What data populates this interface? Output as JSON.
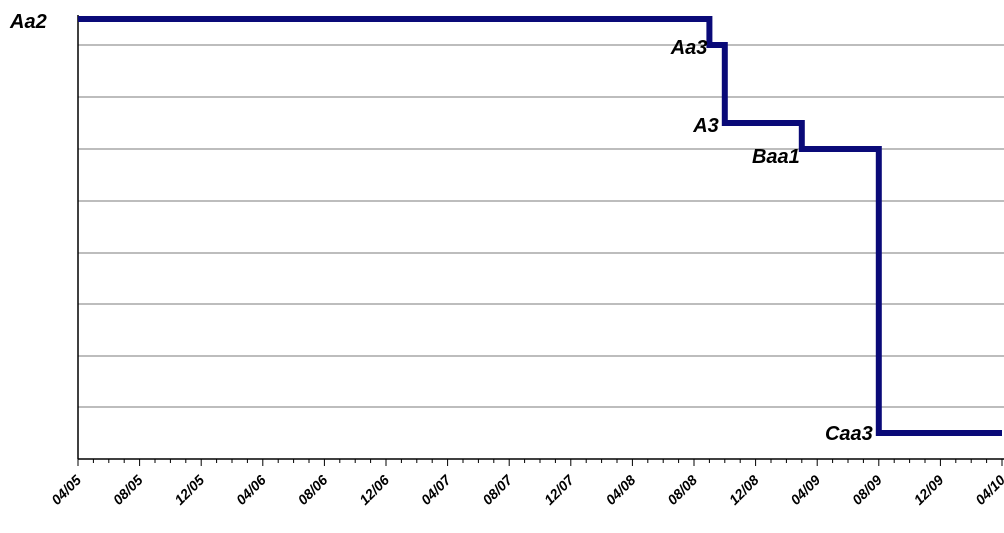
{
  "chart_data": {
    "type": "line",
    "step": true,
    "title": "",
    "xlabel": "",
    "ylabel": "",
    "x_range": [
      "2005-04",
      "2010-04"
    ],
    "x_ticks": [
      "04/05",
      "08/05",
      "12/05",
      "04/06",
      "08/06",
      "12/06",
      "04/07",
      "08/07",
      "12/07",
      "04/08",
      "08/08",
      "12/08",
      "04/09",
      "08/09",
      "12/09",
      "04/10"
    ],
    "y_scale_labels": [
      "Aa2",
      "Aa3",
      "A3",
      "Baa1",
      "Caa3"
    ],
    "grid": true,
    "series": [
      {
        "color": "#0a0a78",
        "points": [
          {
            "x": "2005-04",
            "y": "Aa2"
          },
          {
            "x": "2008-09",
            "y": "Aa3"
          },
          {
            "x": "2008-10",
            "y": "A3"
          },
          {
            "x": "2009-03",
            "y": "Baa1"
          },
          {
            "x": "2009-08",
            "y": "Caa3"
          },
          {
            "x": "2010-04",
            "y": "Caa3"
          }
        ]
      }
    ],
    "annotations": [
      {
        "text": "Aa2",
        "at": "2005-04"
      },
      {
        "text": "Aa3",
        "at": "2008-09"
      },
      {
        "text": "A3",
        "at": "2008-10"
      },
      {
        "text": "Baa1",
        "at": "2009-03"
      },
      {
        "text": "Caa3",
        "at": "2009-08"
      }
    ]
  }
}
